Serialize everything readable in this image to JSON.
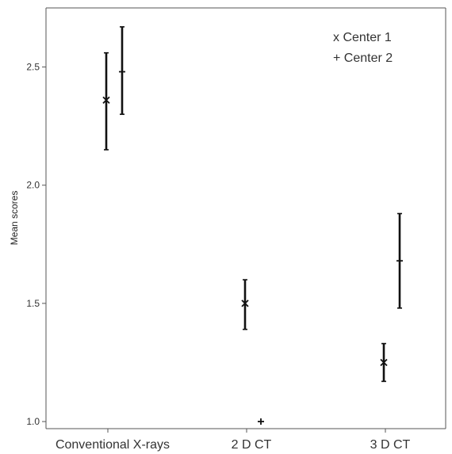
{
  "chart_data": {
    "type": "scatter",
    "title": "",
    "xlabel": "",
    "ylabel": "Mean scores",
    "ylim": [
      0.97,
      2.75
    ],
    "yticks": [
      "1.0",
      "1.5",
      "2.0",
      "2.5"
    ],
    "categories": [
      "Conventional X-rays",
      "2 D CT",
      "3 D CT"
    ],
    "legend_position": "top-right",
    "grid": false,
    "series": [
      {
        "name": "Center 1",
        "legend_label": "x Center 1",
        "marker": "x",
        "values": [
          2.36,
          1.5,
          1.25
        ],
        "lower": [
          2.15,
          1.39,
          1.17
        ],
        "upper": [
          2.56,
          1.6,
          1.33
        ]
      },
      {
        "name": "Center 2",
        "legend_label": "+ Center 2",
        "marker": "+",
        "values": [
          2.48,
          1.0,
          1.68
        ],
        "lower": [
          2.3,
          null,
          1.48
        ],
        "upper": [
          2.67,
          null,
          1.88
        ]
      }
    ]
  }
}
